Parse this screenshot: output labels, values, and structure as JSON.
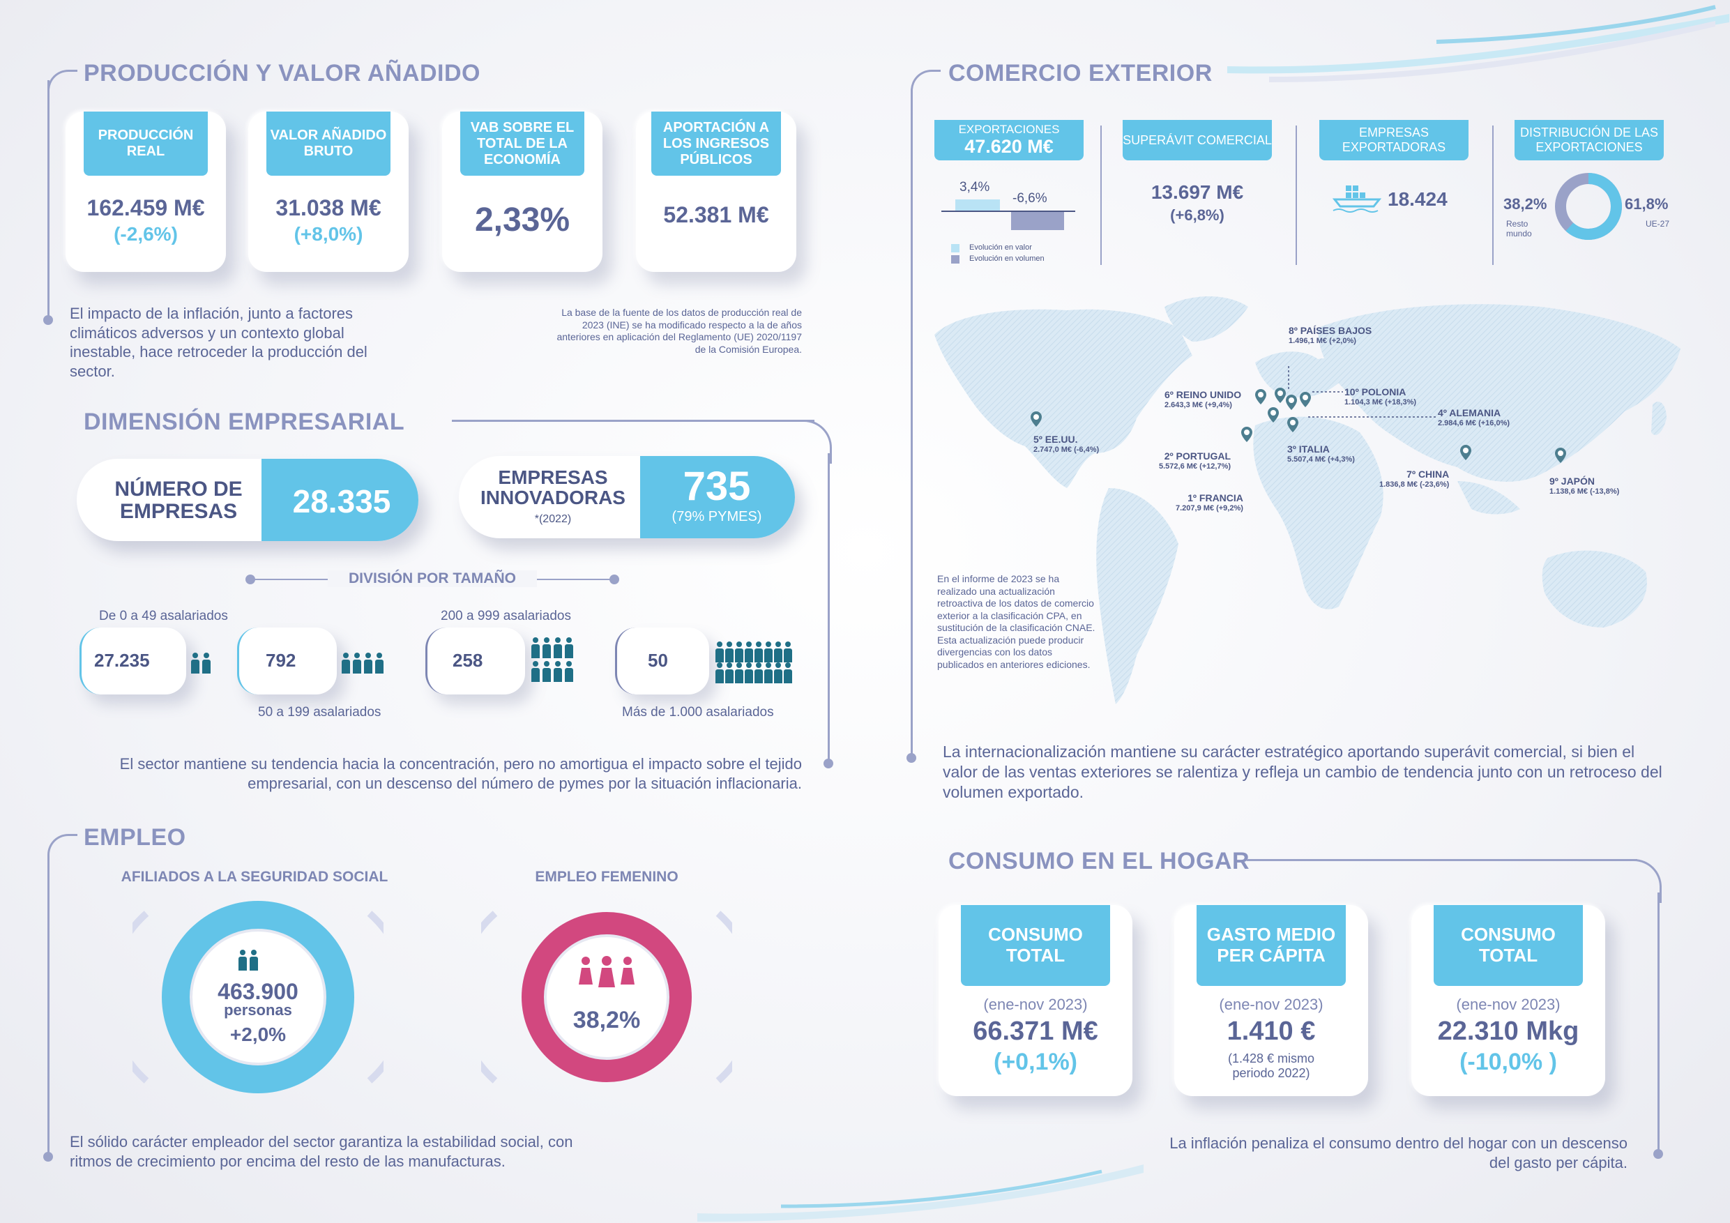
{
  "produccion": {
    "title": "PRODUCCIÓN Y VALOR AÑADIDO",
    "cards": [
      {
        "label": "PRODUCCIÓN REAL",
        "value": "162.459 M€",
        "change": "(-2,6%)"
      },
      {
        "label": "VALOR AÑADIDO BRUTO",
        "value": "31.038 M€",
        "change": "(+8,0%)"
      },
      {
        "label": "VAB SOBRE EL TOTAL DE LA ECONOMÍA",
        "value": "2,33%"
      },
      {
        "label": "APORTACIÓN A LOS INGRESOS PÚBLICOS",
        "value": "52.381 M€"
      }
    ],
    "text": "El impacto de la inflación, junto a factores climáticos adversos y un contexto global inestable, hace retroceder la producción del sector.",
    "note": "La base de la fuente de los datos de producción real de 2023 (INE) se ha modificado respecto a la de años anteriores en aplicación del Reglamento (UE) 2020/1197 de la Comisión Europea."
  },
  "dimension": {
    "title": "DIMENSIÓN EMPRESARIAL",
    "num_label": "NÚMERO DE EMPRESAS",
    "num_value": "28.335",
    "innov_label": "EMPRESAS INNOVADORAS",
    "innov_year": "*(2022)",
    "innov_value": "735",
    "innov_sub": "(79% PYMES)",
    "division_title": "DIVISIÓN POR TAMAÑO",
    "sizes": [
      {
        "label": "De 0 a 49 asalariados",
        "value": "27.235"
      },
      {
        "label": "50 a 199 asalariados",
        "value": "792"
      },
      {
        "label": "200 a 999 asalariados",
        "value": "258"
      },
      {
        "label": "Más de 1.000 asalariados",
        "value": "50"
      }
    ],
    "text": "El sector mantiene su tendencia hacia la concentración, pero no amortigua el impacto sobre el tejido empresarial, con un descenso del número de pymes por la situación inflacionaria."
  },
  "empleo": {
    "title": "EMPLEO",
    "afiliados_title": "AFILIADOS A LA SEGURIDAD SOCIAL",
    "afiliados_value": "463.900",
    "afiliados_unit": "personas",
    "afiliados_change": "+2,0%",
    "femenino_title": "EMPLEO FEMENINO",
    "femenino_value": "38,2%",
    "text": "El sólido carácter empleador del sector garantiza la estabilidad social, con ritmos de crecimiento por encima del resto de las manufacturas.",
    "colors": {
      "cyan": "#62c4e8",
      "pink": "#d2487f"
    }
  },
  "comercio": {
    "title": "COMERCIO EXTERIOR",
    "export_label": "EXPORTACIONES",
    "export_value": "47.620 M€",
    "export_value_change": "3,4%",
    "export_volume_change": "-6,6%",
    "legend_value": "Evolución en valor",
    "legend_volume": "Evolución en volumen",
    "superavit_label": "SUPERÁVIT COMERCIAL",
    "superavit_value": "13.697 M€",
    "superavit_change": "(+6,8%)",
    "empresas_label": "EMPRESAS EXPORTADORAS",
    "empresas_value": "18.424",
    "dist_label": "DISTRIBUCIÓN DE LAS EXPORTACIONES",
    "dist_resto_pct": "38,2%",
    "dist_resto_label": "Resto mundo",
    "dist_ue_pct": "61,8%",
    "dist_ue_label": "UE-27",
    "countries": [
      {
        "name": "8º PAÍSES BAJOS",
        "value": "1.496,1 M€ (+2,0%)"
      },
      {
        "name": "6º REINO UNIDO",
        "value": "2.643,3 M€ (+9,4%)"
      },
      {
        "name": "10º POLONIA",
        "value": "1.104,3 M€ (+18,3%)"
      },
      {
        "name": "4º ALEMANIA",
        "value": "2.984,6 M€ (+16,0%)"
      },
      {
        "name": "5º EE.UU.",
        "value": "2.747,0 M€ (-6,4%)"
      },
      {
        "name": "2º PORTUGAL",
        "value": "5.572,6 M€ (+12,7%)"
      },
      {
        "name": "3º ITALIA",
        "value": "5.507,4 M€ (+4,3%)"
      },
      {
        "name": "7º CHINA",
        "value": "1.836,8 M€ (-23,6%)"
      },
      {
        "name": "9º JAPÓN",
        "value": "1.138,6 M€ (-13,8%)"
      },
      {
        "name": "1º FRANCIA",
        "value": "7.207,9 M€ (+9,2%)"
      }
    ],
    "note": "En el informe de 2023 se ha realizado una actualización retroactiva de los datos de comercio exterior a la clasificación CPA, en sustitución de la clasificación CNAE. Esta actualización puede producir divergencias con los datos publicados en anteriores ediciones.",
    "text": "La internacionalización mantiene su carácter estratégico aportando superávit comercial, si bien el valor de las ventas exteriores se ralentiza y refleja un cambio de tendencia junto con un retroceso del volumen exportado."
  },
  "consumo": {
    "title": "CONSUMO EN EL HOGAR",
    "cards": [
      {
        "label": "CONSUMO TOTAL",
        "period": "(ene-nov 2023)",
        "value": "66.371 M€",
        "change": "(+0,1%)"
      },
      {
        "label": "GASTO MEDIO PER CÁPITA",
        "period": "(ene-nov 2023)",
        "value": "1.410 €",
        "change": "(1.428 € mismo periodo 2022)"
      },
      {
        "label": "CONSUMO TOTAL",
        "period": "(ene-nov 2023)",
        "value": "22.310 Mkg",
        "change": "(-10,0% )"
      }
    ],
    "text": "La inflación penaliza el consumo dentro del hogar con un descenso del gasto per cápita."
  }
}
